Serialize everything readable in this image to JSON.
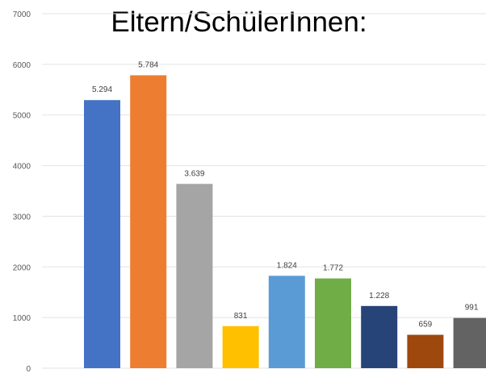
{
  "chart_data": {
    "type": "bar",
    "title": "Eltern/SchülerInnen:",
    "xlabel": "",
    "ylabel": "",
    "ylim": [
      0,
      7000
    ],
    "yticks": [
      0,
      1000,
      2000,
      3000,
      4000,
      5000,
      6000,
      7000
    ],
    "grid": true,
    "legend": "none",
    "values": [
      5294,
      5784,
      3639,
      831,
      1824,
      1772,
      1228,
      659,
      991
    ],
    "data_labels": [
      "5.294",
      "5.784",
      "3.639",
      "831",
      "1.824",
      "1.772",
      "1.228",
      "659",
      "991"
    ],
    "colors": [
      "#4472C4",
      "#ED7D31",
      "#A5A5A5",
      "#FFC000",
      "#5B9BD5",
      "#70AD47",
      "#264478",
      "#9E480E",
      "#636363"
    ]
  }
}
